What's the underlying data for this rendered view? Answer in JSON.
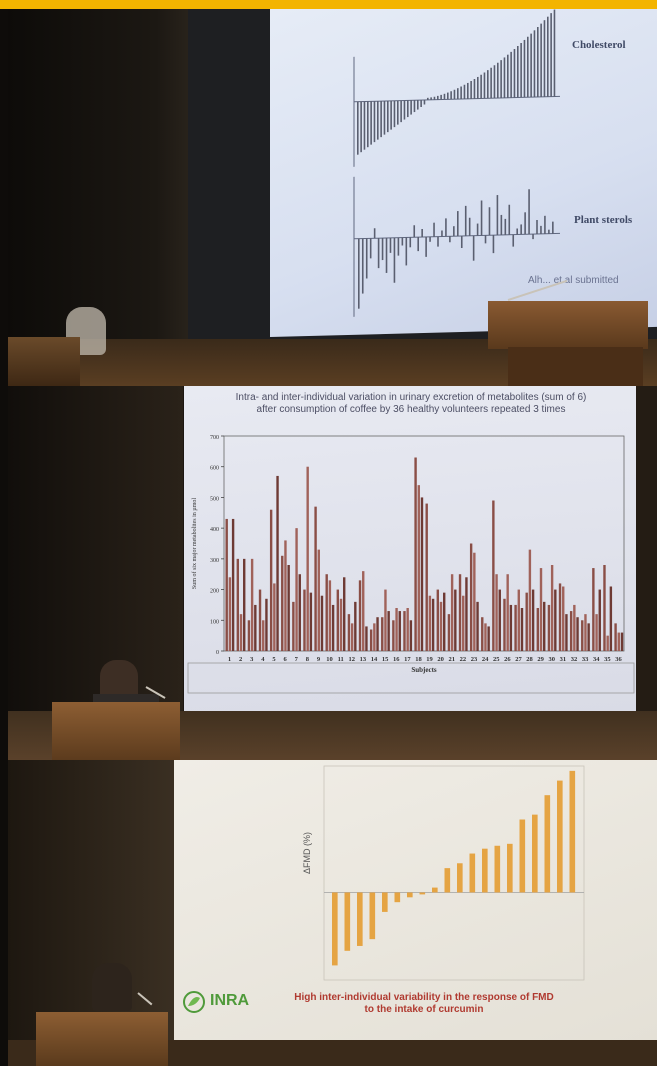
{
  "photo_1": {
    "slide_labels": {
      "top_series": "Cholesterol",
      "bottom_series": "Plant sterols",
      "credit": "Alh... et al submitted"
    }
  },
  "photo_2": {
    "title_line_1": "Intra- and inter-individual variation in urinary excretion of metabolites (sum of 6)",
    "title_line_2": "after consumption of coffee by 36 healthy volunteers repeated 3 times",
    "chart_data": {
      "type": "bar",
      "title": "Intra- and inter-individual variation in urinary excretion of metabolites (sum of 6) after consumption of coffee by 36 healthy volunteers repeated 3 times",
      "xlabel": "Subjects",
      "ylabel": "Sum of six major metabolites in µmol",
      "ylim": [
        0,
        700
      ],
      "yticks": [
        0,
        100,
        200,
        300,
        400,
        500,
        600,
        700
      ],
      "categories": [
        "1",
        "2",
        "3",
        "4",
        "5",
        "6",
        "7",
        "8",
        "9",
        "10",
        "11",
        "12",
        "13",
        "14",
        "15",
        "16",
        "17",
        "18",
        "19",
        "20",
        "21",
        "22",
        "23",
        "24",
        "25",
        "26",
        "27",
        "28",
        "29",
        "30",
        "31",
        "32",
        "33",
        "34",
        "35",
        "36"
      ],
      "series": [
        {
          "values": [
            430,
            300,
            100,
            200,
            460,
            310,
            160,
            200,
            470,
            250,
            200,
            120,
            230,
            70,
            110,
            100,
            130,
            630,
            480,
            200,
            120,
            250,
            350,
            110,
            490,
            170,
            150,
            190,
            140,
            150,
            220,
            130,
            100,
            270,
            280,
            90
          ]
        },
        {
          "values": [
            240,
            120,
            300,
            100,
            220,
            360,
            400,
            600,
            330,
            230,
            170,
            90,
            260,
            90,
            200,
            140,
            140,
            540,
            180,
            160,
            250,
            180,
            320,
            90,
            250,
            250,
            200,
            330,
            270,
            280,
            210,
            150,
            120,
            120,
            50,
            60
          ]
        },
        {
          "values": [
            430,
            300,
            150,
            170,
            570,
            280,
            250,
            190,
            180,
            150,
            240,
            160,
            80,
            110,
            130,
            130,
            100,
            500,
            170,
            190,
            200,
            240,
            160,
            80,
            200,
            150,
            140,
            200,
            160,
            200,
            120,
            110,
            90,
            200,
            210,
            60
          ]
        }
      ]
    }
  },
  "photo_3": {
    "caption_line_1": "High inter-individual variability in the response of FMD",
    "caption_line_2": "to the intake of curcumin",
    "logo_text": "INRA",
    "chart_data": {
      "type": "bar",
      "ylabel": "ΔFMD (%)",
      "values": [
        -7.5,
        -6,
        -5.5,
        -4.8,
        -2,
        -1,
        -0.5,
        -0.2,
        0.5,
        2.5,
        3,
        4,
        4.5,
        4.8,
        5,
        7.5,
        8,
        10,
        11.5,
        12.5
      ],
      "color": "#e5a443"
    }
  }
}
